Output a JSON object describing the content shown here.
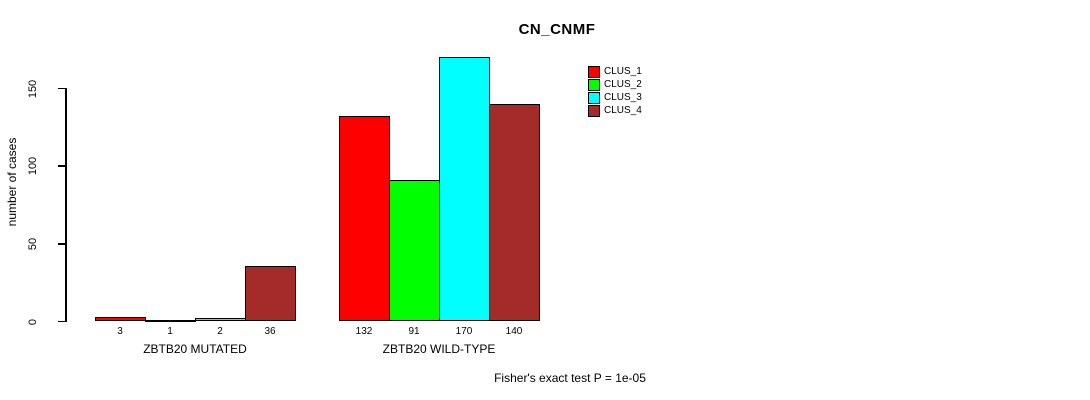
{
  "title": "CN_CNMF",
  "ylabel": "number of cases",
  "footer": "Fisher's exact test P = 1e-05",
  "chart_data": {
    "type": "bar",
    "grouped": true,
    "title": "CN_CNMF",
    "xlabel": "",
    "ylabel": "number of cases",
    "categories": [
      "ZBTB20 MUTATED",
      "ZBTB20 WILD-TYPE"
    ],
    "series": [
      {
        "name": "CLUS_1",
        "color": "#ff0000",
        "values": [
          3,
          132
        ]
      },
      {
        "name": "CLUS_2",
        "color": "#00ff00",
        "values": [
          1,
          91
        ]
      },
      {
        "name": "CLUS_3",
        "color": "#00ffff",
        "values": [
          2,
          170
        ]
      },
      {
        "name": "CLUS_4",
        "color": "#a52a2a",
        "values": [
          36,
          140
        ]
      }
    ],
    "yticks": [
      0,
      50,
      100,
      150
    ],
    "ylim": [
      0,
      175
    ],
    "bar_value_labels": true,
    "legend_position": "top-right",
    "grid": false,
    "annotation": "Fisher's exact test P = 1e-05"
  }
}
